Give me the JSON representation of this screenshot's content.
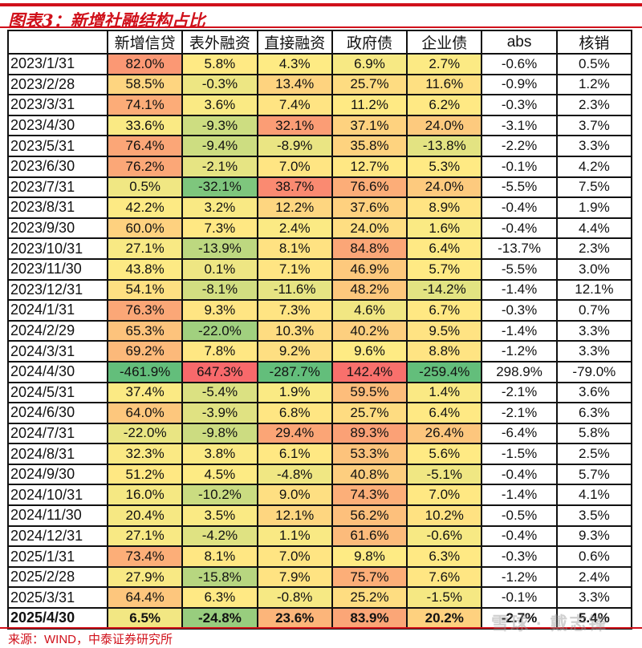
{
  "title": "图表3：新增社融结构占比",
  "source": "来源：WIND，中泰证券研究所",
  "watermark": "雪球 · 戴志锋",
  "chart_data": {
    "type": "heatmap",
    "title": "图表3：新增社融结构占比",
    "columns": [
      "",
      "新增信贷",
      "表外融资",
      "直接融资",
      "政府债",
      "企业债",
      "abs",
      "核销"
    ],
    "colored_columns": [
      "新增信贷",
      "表外融资",
      "直接融资",
      "政府债",
      "企业债"
    ],
    "color_scale": {
      "low": "#63BE7B",
      "mid": "#FFEB84",
      "high": "#F8696B"
    },
    "highlighted_row": "2025/4/30",
    "rows": [
      [
        "2023/1/31",
        "82.0%",
        "5.8%",
        "4.3%",
        "6.9%",
        "2.7%",
        "-0.6%",
        "0.5%"
      ],
      [
        "2023/2/28",
        "58.5%",
        "-0.3%",
        "13.4%",
        "25.7%",
        "11.6%",
        "-0.9%",
        "1.2%"
      ],
      [
        "2023/3/31",
        "74.1%",
        "3.6%",
        "7.4%",
        "11.2%",
        "6.2%",
        "-0.3%",
        "2.3%"
      ],
      [
        "2023/4/30",
        "33.6%",
        "-9.3%",
        "32.1%",
        "37.1%",
        "24.0%",
        "-3.1%",
        "3.7%"
      ],
      [
        "2023/5/31",
        "76.4%",
        "-9.4%",
        "-8.9%",
        "35.8%",
        "-13.8%",
        "-2.2%",
        "3.3%"
      ],
      [
        "2023/6/30",
        "76.2%",
        "-2.1%",
        "7.0%",
        "12.7%",
        "5.3%",
        "-0.1%",
        "4.2%"
      ],
      [
        "2023/7/31",
        "0.5%",
        "-32.1%",
        "38.7%",
        "76.6%",
        "24.0%",
        "-5.5%",
        "7.5%"
      ],
      [
        "2023/8/31",
        "42.2%",
        "3.2%",
        "12.2%",
        "37.6%",
        "8.9%",
        "-0.4%",
        "1.9%"
      ],
      [
        "2023/9/30",
        "60.0%",
        "7.3%",
        "2.4%",
        "24.0%",
        "1.6%",
        "-0.4%",
        "4.4%"
      ],
      [
        "2023/10/31",
        "27.1%",
        "-13.9%",
        "8.1%",
        "84.8%",
        "6.4%",
        "-13.7%",
        "2.3%"
      ],
      [
        "2023/11/30",
        "43.8%",
        "0.1%",
        "7.1%",
        "46.9%",
        "5.7%",
        "-5.5%",
        "3.0%"
      ],
      [
        "2023/12/31",
        "54.1%",
        "-8.1%",
        "-11.6%",
        "48.2%",
        "-14.2%",
        "-1.4%",
        "12.1%"
      ],
      [
        "2024/1/31",
        "76.3%",
        "9.3%",
        "7.3%",
        "4.6%",
        "6.7%",
        "-0.3%",
        "0.7%"
      ],
      [
        "2024/2/29",
        "65.3%",
        "-22.0%",
        "10.3%",
        "40.2%",
        "9.5%",
        "-1.4%",
        "3.3%"
      ],
      [
        "2024/3/31",
        "69.2%",
        "7.8%",
        "9.2%",
        "9.6%",
        "8.8%",
        "-1.2%",
        "3.3%"
      ],
      [
        "2024/4/30",
        "-461.9%",
        "647.3%",
        "-287.7%",
        "142.4%",
        "-259.4%",
        "298.9%",
        "-79.0%"
      ],
      [
        "2024/5/31",
        "37.4%",
        "-5.4%",
        "1.9%",
        "59.5%",
        "1.4%",
        "-2.1%",
        "3.6%"
      ],
      [
        "2024/6/30",
        "64.0%",
        "-3.9%",
        "6.8%",
        "25.7%",
        "6.4%",
        "-2.1%",
        "6.3%"
      ],
      [
        "2024/7/31",
        "-22.0%",
        "-9.8%",
        "29.4%",
        "89.3%",
        "26.4%",
        "-6.4%",
        "5.8%"
      ],
      [
        "2024/8/31",
        "32.3%",
        "3.8%",
        "6.1%",
        "53.3%",
        "5.6%",
        "-1.5%",
        "2.5%"
      ],
      [
        "2024/9/30",
        "51.2%",
        "4.5%",
        "-4.8%",
        "40.8%",
        "-5.1%",
        "-0.4%",
        "5.7%"
      ],
      [
        "2024/10/31",
        "16.0%",
        "-10.2%",
        "9.0%",
        "74.3%",
        "7.0%",
        "-1.4%",
        "4.1%"
      ],
      [
        "2024/11/30",
        "20.4%",
        "3.5%",
        "12.1%",
        "56.2%",
        "10.2%",
        "-0.5%",
        "3.5%"
      ],
      [
        "2024/12/31",
        "27.1%",
        "-4.2%",
        "1.1%",
        "61.6%",
        "-0.6%",
        "-0.4%",
        "9.3%"
      ],
      [
        "2025/1/31",
        "73.4%",
        "8.1%",
        "7.0%",
        "9.8%",
        "6.3%",
        "-0.3%",
        "0.6%"
      ],
      [
        "2025/2/28",
        "27.9%",
        "-15.8%",
        "7.9%",
        "75.7%",
        "7.6%",
        "-1.2%",
        "2.4%"
      ],
      [
        "2025/3/31",
        "64.4%",
        "6.3%",
        "-0.8%",
        "25.2%",
        "-1.5%",
        "-0.1%",
        "3.3%"
      ],
      [
        "2025/4/30",
        "6.5%",
        "-24.8%",
        "23.6%",
        "83.9%",
        "20.2%",
        "-2.7%",
        "5.4%"
      ]
    ]
  }
}
